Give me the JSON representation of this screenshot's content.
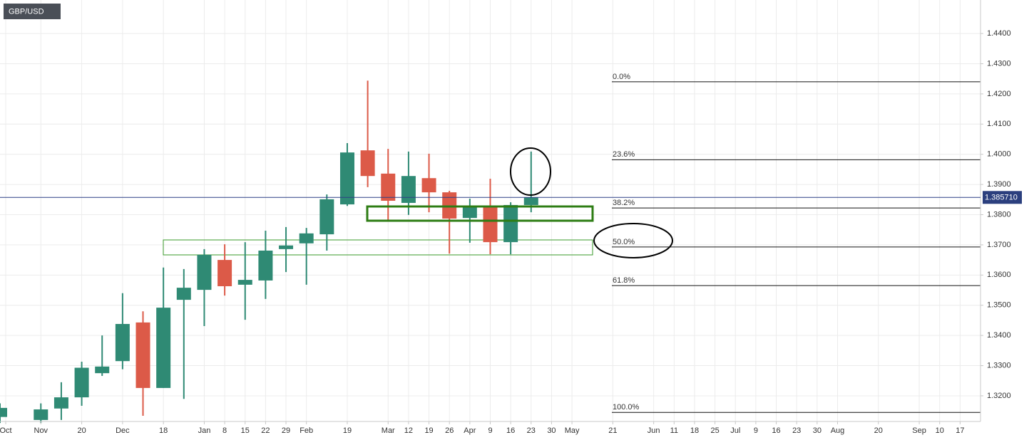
{
  "chart_data": {
    "type": "candlestick",
    "title": "GBP/USD",
    "x": [
      0,
      2,
      3,
      4,
      5,
      6,
      7,
      8,
      9,
      10,
      11,
      12,
      13,
      14,
      15,
      16,
      17,
      18,
      19,
      20,
      21,
      22,
      23,
      24,
      25,
      26
    ],
    "open": [
      1.313,
      1.312,
      1.3158,
      1.3195,
      1.3275,
      1.3315,
      1.3443,
      1.3226,
      1.3518,
      1.3551,
      1.365,
      1.3568,
      1.3582,
      1.3686,
      1.3705,
      1.3735,
      1.3834,
      1.4013,
      1.3936,
      1.3839,
      1.3921,
      1.3874,
      1.3789,
      1.3827,
      1.3709,
      1.3832
    ],
    "high": [
      1.3175,
      1.3175,
      1.3245,
      1.3313,
      1.34,
      1.354,
      1.348,
      1.3625,
      1.362,
      1.3686,
      1.3702,
      1.3709,
      1.3747,
      1.3759,
      1.3756,
      1.3867,
      1.4037,
      1.4244,
      1.4018,
      1.4009,
      1.4002,
      1.3879,
      1.3853,
      1.3919,
      1.3841,
      1.4009
    ],
    "low": [
      1.311,
      1.311,
      1.312,
      1.3167,
      1.3266,
      1.3288,
      1.3134,
      1.3226,
      1.319,
      1.3431,
      1.3532,
      1.3452,
      1.3521,
      1.361,
      1.3568,
      1.3681,
      1.3829,
      1.3891,
      1.3782,
      1.3799,
      1.3808,
      1.3671,
      1.3707,
      1.3669,
      1.3669,
      1.3808
    ],
    "close": [
      1.316,
      1.3155,
      1.3195,
      1.3293,
      1.3297,
      1.3438,
      1.3226,
      1.3492,
      1.3558,
      1.3667,
      1.3563,
      1.3584,
      1.3681,
      1.3698,
      1.3738,
      1.3851,
      1.4006,
      1.3928,
      1.3846,
      1.3928,
      1.3874,
      1.3787,
      1.3829,
      1.3709,
      1.3832,
      1.3857
    ],
    "up_color": "#2f8a74",
    "down_color": "#dc5a48",
    "xlim": [
      0,
      48
    ],
    "ylim": [
      1.3115,
      1.4511
    ],
    "grid": true,
    "xticks": [
      {
        "value": 0.28,
        "label": "Oct"
      },
      {
        "value": 2,
        "label": "Nov"
      },
      {
        "value": 4,
        "label": "20"
      },
      {
        "value": 6,
        "label": "Dec"
      },
      {
        "value": 8,
        "label": "18"
      },
      {
        "value": 10,
        "label": "Jan"
      },
      {
        "value": 11,
        "label": "8"
      },
      {
        "value": 12,
        "label": "15"
      },
      {
        "value": 13,
        "label": "22"
      },
      {
        "value": 14,
        "label": "29"
      },
      {
        "value": 15,
        "label": "Feb"
      },
      {
        "value": 17,
        "label": "19"
      },
      {
        "value": 19,
        "label": "Mar"
      },
      {
        "value": 20,
        "label": "12"
      },
      {
        "value": 21,
        "label": "19"
      },
      {
        "value": 22,
        "label": "26"
      },
      {
        "value": 23,
        "label": "Apr"
      },
      {
        "value": 24,
        "label": "9"
      },
      {
        "value": 25,
        "label": "16"
      },
      {
        "value": 26,
        "label": "23"
      },
      {
        "value": 27,
        "label": "30"
      },
      {
        "value": 28,
        "label": "May"
      },
      {
        "value": 30,
        "label": "21"
      },
      {
        "value": 32,
        "label": "Jun"
      },
      {
        "value": 33,
        "label": "11"
      },
      {
        "value": 34,
        "label": "18"
      },
      {
        "value": 35,
        "label": "25"
      },
      {
        "value": 36,
        "label": "Jul"
      },
      {
        "value": 37,
        "label": "9"
      },
      {
        "value": 38,
        "label": "16"
      },
      {
        "value": 39,
        "label": "23"
      },
      {
        "value": 40,
        "label": "30"
      },
      {
        "value": 41,
        "label": "Aug"
      },
      {
        "value": 43,
        "label": "20"
      },
      {
        "value": 45,
        "label": "Sep"
      },
      {
        "value": 46,
        "label": "10"
      },
      {
        "value": 47,
        "label": "17"
      }
    ],
    "yticks": [
      {
        "value": 1.32,
        "label": "1.3200"
      },
      {
        "value": 1.33,
        "label": "1.3300"
      },
      {
        "value": 1.34,
        "label": "1.3400"
      },
      {
        "value": 1.35,
        "label": "1.3500"
      },
      {
        "value": 1.36,
        "label": "1.3600"
      },
      {
        "value": 1.37,
        "label": "1.3700"
      },
      {
        "value": 1.38,
        "label": "1.3800"
      },
      {
        "value": 1.39,
        "label": "1.3900"
      },
      {
        "value": 1.4,
        "label": "1.4000"
      },
      {
        "value": 1.41,
        "label": "1.4100"
      },
      {
        "value": 1.42,
        "label": "1.4200"
      },
      {
        "value": 1.43,
        "label": "1.4300"
      },
      {
        "value": 1.44,
        "label": "1.4400"
      }
    ],
    "last_price": {
      "value": 1.38571,
      "label": "1.385710"
    },
    "fib_levels": [
      {
        "label": "0.0%",
        "price": 1.424
      },
      {
        "label": "23.6%",
        "price": 1.3982
      },
      {
        "label": "38.2%",
        "price": 1.3822
      },
      {
        "label": "50.0%",
        "price": 1.3693
      },
      {
        "label": "61.8%",
        "price": 1.3565
      },
      {
        "label": "100.0%",
        "price": 1.3145
      }
    ]
  }
}
